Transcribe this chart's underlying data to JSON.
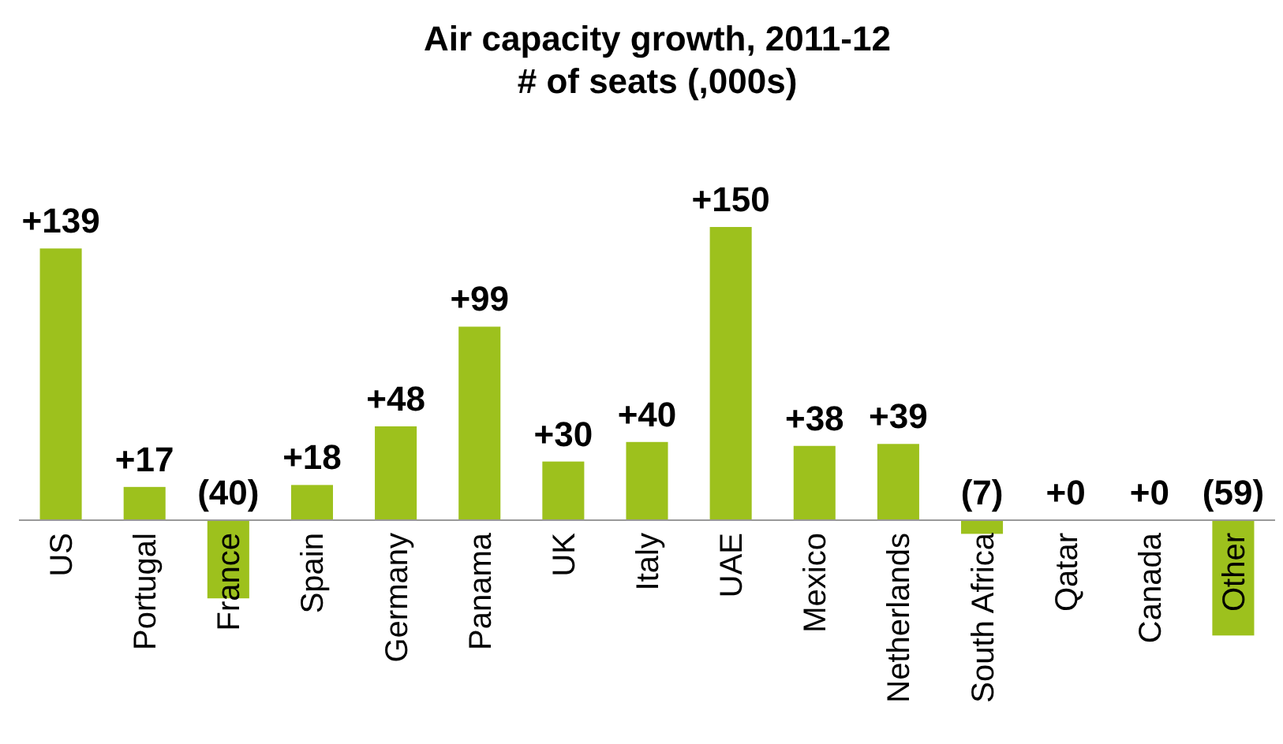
{
  "chart_data": {
    "type": "bar",
    "title": "Air capacity growth, 2011-12",
    "subtitle": "# of seats (,000s)",
    "categories": [
      "US",
      "Portugal",
      "France",
      "Spain",
      "Germany",
      "Panama",
      "UK",
      "Italy",
      "UAE",
      "Mexico",
      "Netherlands",
      "South Africa",
      "Qatar",
      "Canada",
      "Other"
    ],
    "values": [
      139,
      17,
      -40,
      18,
      48,
      99,
      30,
      40,
      150,
      38,
      39,
      -7,
      0,
      0,
      -59
    ],
    "value_labels": [
      "+139",
      "+17",
      "(40)",
      "+18",
      "+48",
      "+99",
      "+30",
      "+40",
      "+150",
      "+38",
      "+39",
      "(7)",
      "+0",
      "+0",
      "(59)"
    ],
    "color": "#9dc11d"
  }
}
